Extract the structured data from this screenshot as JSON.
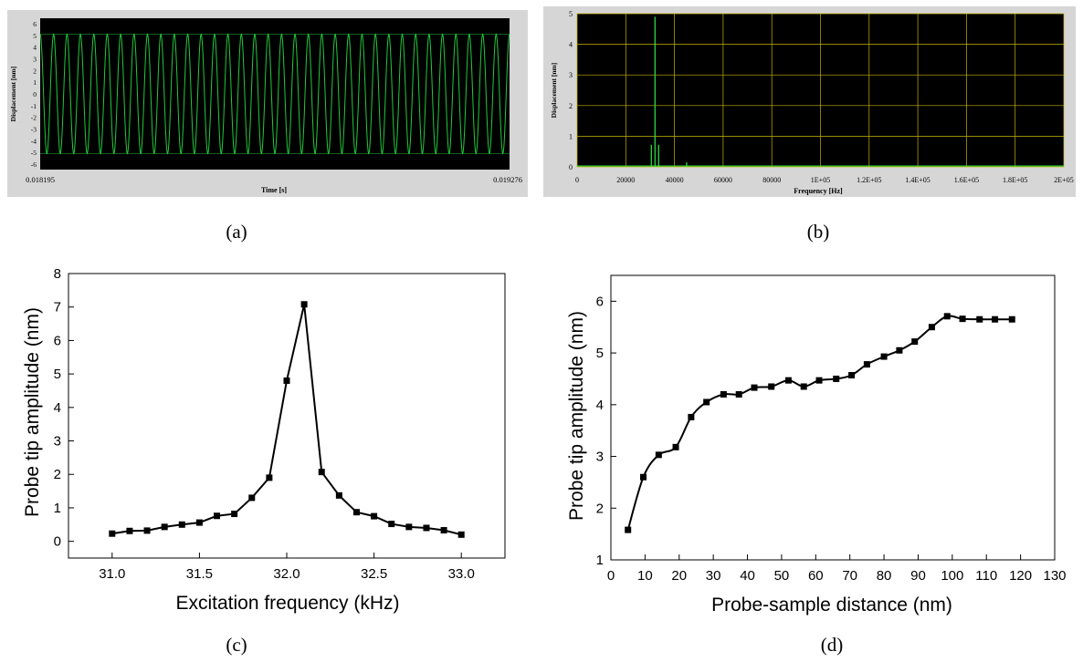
{
  "chart_data": [
    {
      "panel": "(a)",
      "type": "line",
      "theme": "dark",
      "xlabel": "Time [s]",
      "ylabel": "Displacement [nm]",
      "xlim": [
        0.018195,
        0.019276
      ],
      "ylim": [
        -6,
        6
      ],
      "x_tick_labels": [
        "0.018195",
        "0.019276"
      ],
      "y_ticks": [
        6,
        5,
        4,
        3,
        2,
        1,
        0,
        -1,
        -2,
        -3,
        -4,
        -5,
        -6
      ],
      "signal": {
        "kind": "sine",
        "amplitude": 5.1,
        "cycles": 35
      },
      "colors": {
        "background": "#000000",
        "trace": "#22c93c",
        "frame": "#d6d6d6"
      }
    },
    {
      "panel": "(b)",
      "type": "line",
      "theme": "dark",
      "xlabel": "Frequency [Hz]",
      "ylabel": "Displacement [nm]",
      "xlim": [
        0,
        200000
      ],
      "ylim": [
        0,
        5
      ],
      "x_ticks": [
        0,
        20000,
        40000,
        60000,
        80000,
        100000,
        120000,
        140000,
        160000,
        180000,
        200000
      ],
      "x_tick_labels": [
        "0",
        "20000",
        "40000",
        "60000",
        "80000",
        "1E+05",
        "1.2E+05",
        "1.4E+05",
        "1.6E+05",
        "1.8E+05",
        "2E+05"
      ],
      "y_ticks": [
        0,
        1,
        2,
        3,
        4,
        5
      ],
      "grid": true,
      "peaks": [
        {
          "x": 30500,
          "y": 0.72
        },
        {
          "x": 32000,
          "y": 4.9
        },
        {
          "x": 33500,
          "y": 0.72
        },
        {
          "x": 45000,
          "y": 0.15
        }
      ],
      "colors": {
        "background": "#000000",
        "trace": "#2ee84a",
        "grid": "#c8b400",
        "frame": "#d6d6d6"
      }
    },
    {
      "panel": "(c)",
      "type": "line",
      "xlabel": "Excitation frequency (kHz)",
      "ylabel": "Probe tip amplitude (nm)",
      "xlim": [
        30.75,
        33.25
      ],
      "ylim": [
        -0.5,
        8
      ],
      "x_ticks": [
        31.0,
        31.5,
        32.0,
        32.5,
        33.0
      ],
      "x_tick_labels": [
        "31.0",
        "31.5",
        "32.0",
        "32.5",
        "33.0"
      ],
      "y_ticks": [
        0,
        1,
        2,
        3,
        4,
        5,
        6,
        7,
        8
      ],
      "marker": "square",
      "x": [
        31.0,
        31.1,
        31.2,
        31.3,
        31.4,
        31.5,
        31.6,
        31.7,
        31.8,
        31.9,
        32.0,
        32.1,
        32.2,
        32.3,
        32.4,
        32.5,
        32.6,
        32.7,
        32.8,
        32.9,
        33.0
      ],
      "y": [
        0.23,
        0.31,
        0.32,
        0.43,
        0.5,
        0.56,
        0.76,
        0.82,
        1.3,
        1.9,
        4.8,
        7.08,
        2.07,
        1.37,
        0.87,
        0.75,
        0.52,
        0.43,
        0.4,
        0.33,
        0.2
      ]
    },
    {
      "panel": "(d)",
      "type": "line",
      "xlabel": "Probe-sample distance (nm)",
      "ylabel": "Probe tip amplitude (nm)",
      "xlim": [
        0,
        130
      ],
      "ylim": [
        1,
        6.5
      ],
      "x_ticks": [
        0,
        10,
        20,
        30,
        40,
        50,
        60,
        70,
        80,
        90,
        100,
        110,
        120,
        130
      ],
      "y_ticks": [
        1,
        2,
        3,
        4,
        5,
        6
      ],
      "marker": "square",
      "smooth": true,
      "x": [
        5,
        9.5,
        14,
        19,
        23.5,
        28,
        33,
        37.5,
        42,
        47,
        52,
        56.5,
        61,
        66,
        70.5,
        75,
        80,
        84.5,
        89,
        94,
        98.5,
        103,
        108,
        112.5,
        117.5
      ],
      "y": [
        1.58,
        2.6,
        3.03,
        3.18,
        3.76,
        4.05,
        4.2,
        4.2,
        4.33,
        4.35,
        4.47,
        4.35,
        4.47,
        4.5,
        4.57,
        4.78,
        4.93,
        5.05,
        5.22,
        5.5,
        5.71,
        5.66,
        5.65,
        5.65,
        5.65
      ]
    }
  ],
  "captions": {
    "a": "(a)",
    "b": "(b)",
    "c": "(c)",
    "d": "(d)"
  }
}
